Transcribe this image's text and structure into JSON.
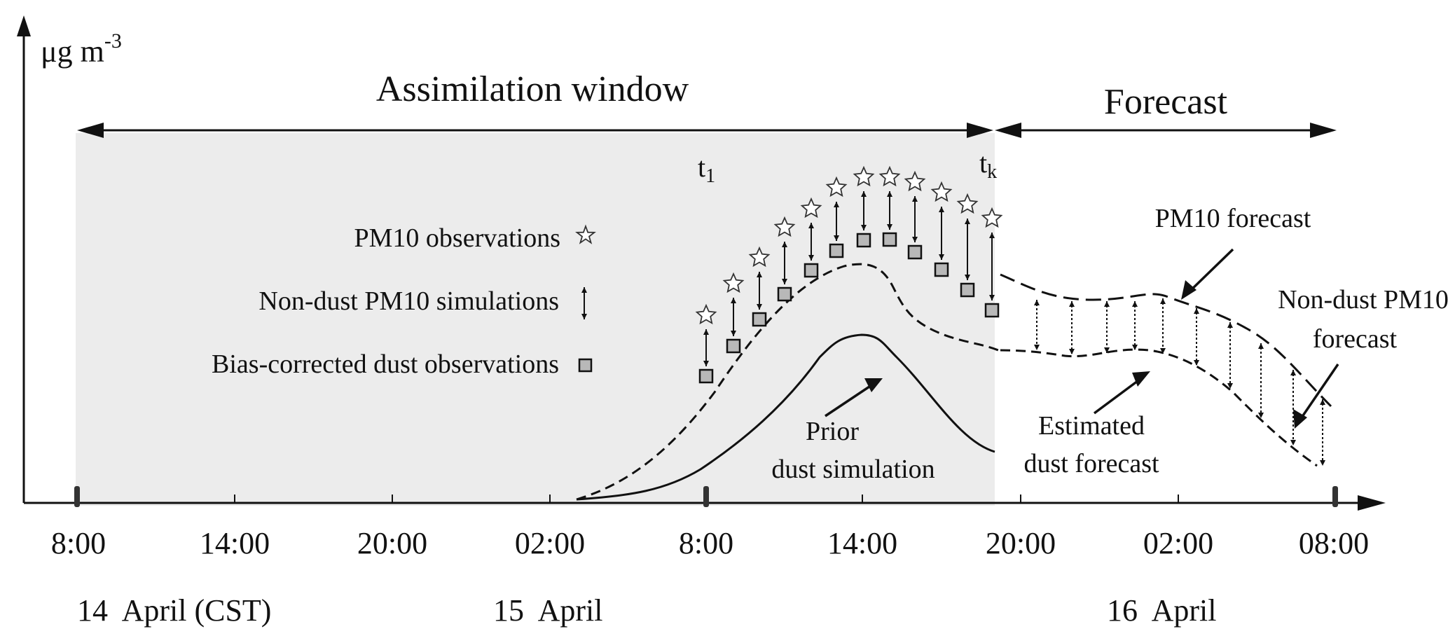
{
  "figure": {
    "unit_parts": {
      "base": "μg m",
      "exp": "-3"
    },
    "assimilation_window_label": "Assimilation window",
    "forecast_label": "Forecast",
    "t1": {
      "base": "t",
      "sub": "1"
    },
    "tk": {
      "base": "t",
      "sub": "k"
    },
    "legend": {
      "observations": "PM10 observations",
      "nondust": "Non-dust PM10 simulations",
      "bias_corrected": "Bias-corrected dust observations"
    },
    "annotations": {
      "pm10_forecast": "PM10 forecast",
      "nondust_forecast_line1": "Non-dust PM10",
      "nondust_forecast_line2": "forecast",
      "estimated_line1": "Estimated",
      "estimated_line2": "dust forecast",
      "prior_line1": "Prior",
      "prior_line2": "dust simulation"
    },
    "ticks": [
      "8:00",
      "14:00",
      "20:00",
      "02:00",
      "8:00",
      "14:00",
      "20:00",
      "02:00",
      "08:00"
    ],
    "dates": [
      "14  April (CST)",
      "15  April",
      "16  April"
    ],
    "colors": {
      "window_shade": "#ececec",
      "square_fill": "#b8b8b8",
      "line": "#111111"
    }
  }
}
